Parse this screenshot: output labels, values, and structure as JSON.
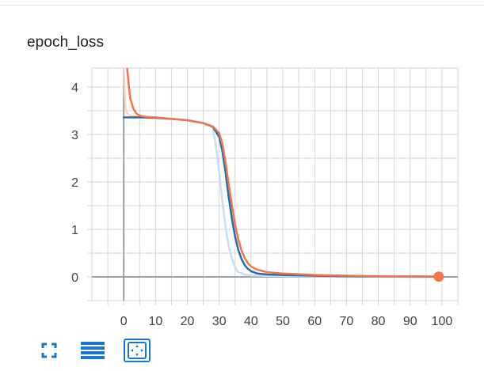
{
  "card": {
    "title": "epoch_loss"
  },
  "toolbar": {
    "buttons": [
      {
        "icon": "fullscreen-icon"
      },
      {
        "icon": "toggle-log-scale-icon"
      },
      {
        "icon": "fit-domain-icon"
      }
    ]
  },
  "colors": {
    "train": "#f4734d",
    "validation": "#1f6fae",
    "validation_raw": "#c9dff0",
    "train_raw": "#fbd3c5",
    "grid": "#d6d6d6",
    "axis": "#9e9e9e",
    "accent": "#1976d2"
  },
  "chart_data": {
    "type": "line",
    "title": "epoch_loss",
    "xlabel": "",
    "ylabel": "",
    "xlim": [
      -10,
      105
    ],
    "ylim": [
      -0.5,
      4.4
    ],
    "x_ticks": [
      0,
      10,
      20,
      30,
      40,
      50,
      60,
      70,
      80,
      90,
      100
    ],
    "y_ticks": [
      0,
      1,
      2,
      3,
      4
    ],
    "grid": true,
    "series": [
      {
        "key": "validation",
        "points": [
          [
            0,
            3.36
          ],
          [
            5,
            3.36
          ],
          [
            10,
            3.35
          ],
          [
            15,
            3.33
          ],
          [
            20,
            3.3
          ],
          [
            25,
            3.24
          ],
          [
            28,
            3.16
          ],
          [
            30,
            2.95
          ],
          [
            31,
            2.65
          ],
          [
            32,
            2.2
          ],
          [
            33,
            1.68
          ],
          [
            34,
            1.22
          ],
          [
            35,
            0.85
          ],
          [
            36,
            0.57
          ],
          [
            37,
            0.38
          ],
          [
            38,
            0.25
          ],
          [
            39,
            0.17
          ],
          [
            40,
            0.12
          ],
          [
            42,
            0.07
          ],
          [
            45,
            0.05
          ],
          [
            50,
            0.04
          ],
          [
            60,
            0.025
          ],
          [
            70,
            0.015
          ],
          [
            80,
            0.01
          ],
          [
            90,
            0.008
          ],
          [
            99,
            0.005
          ]
        ]
      },
      {
        "key": "train",
        "points": [
          [
            1,
            4.45
          ],
          [
            1.5,
            4.1
          ],
          [
            2,
            3.78
          ],
          [
            3,
            3.55
          ],
          [
            4,
            3.44
          ],
          [
            5,
            3.4
          ],
          [
            7,
            3.37
          ],
          [
            10,
            3.36
          ],
          [
            15,
            3.33
          ],
          [
            20,
            3.3
          ],
          [
            25,
            3.24
          ],
          [
            28,
            3.17
          ],
          [
            30,
            3.03
          ],
          [
            31,
            2.8
          ],
          [
            32,
            2.42
          ],
          [
            33,
            1.95
          ],
          [
            34,
            1.5
          ],
          [
            35,
            1.1
          ],
          [
            36,
            0.79
          ],
          [
            37,
            0.56
          ],
          [
            38,
            0.4
          ],
          [
            39,
            0.29
          ],
          [
            40,
            0.22
          ],
          [
            42,
            0.15
          ],
          [
            45,
            0.1
          ],
          [
            50,
            0.07
          ],
          [
            60,
            0.04
          ],
          [
            70,
            0.025
          ],
          [
            80,
            0.015
          ],
          [
            90,
            0.01
          ],
          [
            99,
            0.008
          ]
        ]
      },
      {
        "key": "validation_raw",
        "points": [
          [
            28,
            3.1
          ],
          [
            29,
            2.75
          ],
          [
            30,
            2.2
          ],
          [
            31,
            1.6
          ],
          [
            32,
            1.05
          ],
          [
            33,
            0.65
          ],
          [
            34,
            0.38
          ],
          [
            35,
            0.2
          ],
          [
            36,
            0.1
          ],
          [
            38,
            0.05
          ],
          [
            40,
            0.03
          ],
          [
            45,
            0.02
          ],
          [
            60,
            0.01
          ],
          [
            99,
            0.005
          ]
        ]
      },
      {
        "key": "train_raw",
        "points": [
          [
            0,
            4.4
          ],
          [
            0.5,
            3.6
          ],
          [
            1,
            3.45
          ],
          [
            2,
            3.4
          ],
          [
            4,
            3.38
          ]
        ]
      }
    ],
    "end_marker": {
      "x": 99,
      "y": 0.005
    }
  }
}
